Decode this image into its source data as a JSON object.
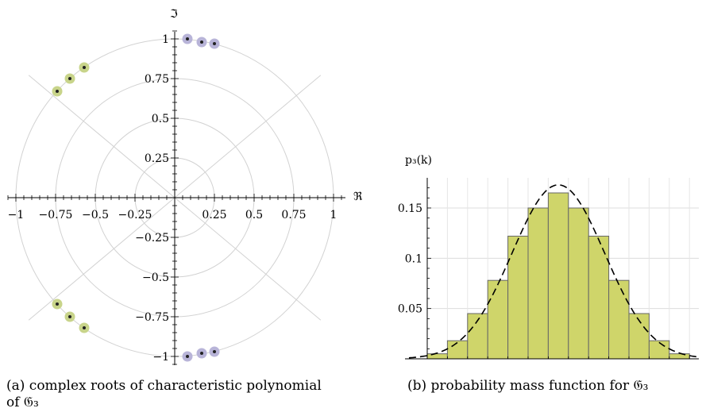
{
  "chart_data": [
    {
      "type": "scatter",
      "panel": "(a)",
      "caption": "(a) complex roots of characteristic polynomial of 𝔊₃",
      "caption_line1": "(a) complex roots of characteristic polynomial",
      "caption_line2": "of 𝔊₃",
      "xlabel": "ℜ",
      "ylabel": "ℑ",
      "xlim": [
        -1,
        1
      ],
      "ylim": [
        -1,
        1
      ],
      "x_ticks": [
        "−1",
        "−0.75",
        "−0.5",
        "−0.25",
        "0.25",
        "0.5",
        "0.75",
        "1"
      ],
      "x_tick_values": [
        -1,
        -0.75,
        -0.5,
        -0.25,
        0.25,
        0.5,
        0.75,
        1
      ],
      "y_ticks": [
        "1",
        "0.75",
        "0.5",
        "0.25",
        "−0.25",
        "−0.5",
        "−0.75",
        "−1"
      ],
      "y_tick_values": [
        1,
        0.75,
        0.5,
        0.25,
        -0.25,
        -0.5,
        -0.75,
        -1
      ],
      "grid": "polar",
      "grid_radii": [
        0.25,
        0.5,
        0.75,
        1
      ],
      "grid_angles_deg": [
        0,
        40,
        90,
        140,
        180,
        220,
        270,
        320
      ],
      "series": [
        {
          "color": "#c8d48a",
          "points": [
            {
              "x": -0.74,
              "y": 0.67
            },
            {
              "x": -0.66,
              "y": 0.75
            },
            {
              "x": -0.57,
              "y": 0.82
            },
            {
              "x": -0.74,
              "y": -0.67
            },
            {
              "x": -0.66,
              "y": -0.75
            },
            {
              "x": -0.57,
              "y": -0.82
            }
          ]
        },
        {
          "color": "#b8b4d8",
          "points": [
            {
              "x": 0.08,
              "y": 1.0
            },
            {
              "x": 0.17,
              "y": 0.98
            },
            {
              "x": 0.25,
              "y": 0.97
            },
            {
              "x": 0.08,
              "y": -1.0
            },
            {
              "x": 0.17,
              "y": -0.98
            },
            {
              "x": 0.25,
              "y": -0.97
            }
          ]
        }
      ]
    },
    {
      "type": "bar",
      "panel": "(b)",
      "caption": "(b) probability mass function for 𝔊₃",
      "ylabel": "p₃(k)",
      "ylim": [
        0,
        0.18
      ],
      "y_ticks": [
        "0.05",
        "0.1",
        "0.15"
      ],
      "y_tick_values": [
        0.05,
        0.1,
        0.15
      ],
      "grid": true,
      "bar_color": "#cfd56a",
      "curve_style": "dashed",
      "values": [
        0.005,
        0.018,
        0.045,
        0.078,
        0.122,
        0.15,
        0.165,
        0.15,
        0.122,
        0.078,
        0.045,
        0.018,
        0.005
      ]
    }
  ]
}
